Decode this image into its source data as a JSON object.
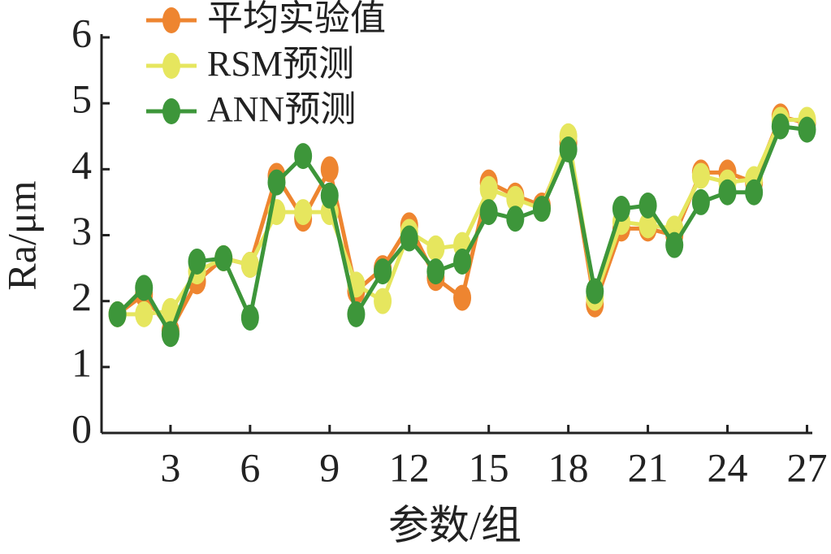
{
  "chart_data": {
    "type": "line",
    "x_label": "参数/组",
    "y_label": "Ra/μm",
    "x": [
      1,
      2,
      3,
      4,
      5,
      6,
      7,
      8,
      9,
      10,
      11,
      12,
      13,
      14,
      15,
      16,
      17,
      18,
      19,
      20,
      21,
      22,
      23,
      24,
      25,
      26,
      27
    ],
    "series": [
      {
        "name": "平均实验值",
        "color": "#ee8530",
        "values": [
          1.8,
          2.1,
          1.55,
          2.3,
          2.65,
          2.55,
          3.9,
          3.25,
          4.0,
          2.15,
          2.5,
          3.15,
          2.35,
          2.05,
          3.8,
          3.6,
          3.45,
          4.4,
          1.95,
          3.1,
          3.1,
          3.0,
          3.95,
          3.95,
          3.8,
          4.8,
          4.7
        ]
      },
      {
        "name": "RSM预测",
        "color": "#e6e65e",
        "values": [
          1.8,
          1.8,
          1.85,
          2.45,
          2.65,
          2.55,
          3.35,
          3.35,
          3.35,
          2.25,
          2.0,
          3.05,
          2.8,
          2.85,
          3.7,
          3.55,
          3.4,
          4.5,
          2.05,
          3.2,
          3.15,
          3.1,
          3.9,
          3.8,
          3.85,
          4.75,
          4.75
        ]
      },
      {
        "name": "ANN预测",
        "color": "#3d963a",
        "values": [
          1.8,
          2.2,
          1.5,
          2.6,
          2.65,
          1.75,
          3.8,
          4.2,
          3.6,
          1.8,
          2.45,
          2.95,
          2.45,
          2.6,
          3.35,
          3.25,
          3.4,
          4.3,
          2.15,
          3.4,
          3.45,
          2.85,
          3.5,
          3.65,
          3.65,
          4.65,
          4.6
        ]
      }
    ],
    "xlim": [
      0.4,
      27.2
    ],
    "xticks": [
      3,
      6,
      9,
      12,
      15,
      18,
      21,
      24,
      27
    ],
    "ylim": [
      0,
      6
    ],
    "yticks": [
      0,
      1,
      2,
      3,
      4,
      5,
      6
    ],
    "legend": "upper left"
  }
}
